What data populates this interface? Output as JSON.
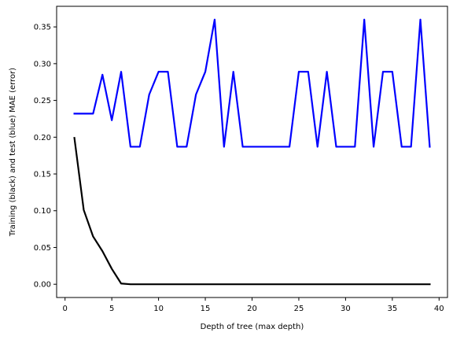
{
  "chart_data": {
    "type": "line",
    "title": "",
    "xlabel": "Depth of tree (max depth)",
    "ylabel": "Training (black) and test (blue) MAE (error)",
    "xlim": [
      -0.9,
      40.9
    ],
    "ylim": [
      -0.018,
      0.378
    ],
    "xticks": [
      0,
      5,
      10,
      15,
      20,
      25,
      30,
      35,
      40
    ],
    "yticks": [
      0.0,
      0.05,
      0.1,
      0.15,
      0.2,
      0.25,
      0.3,
      0.35
    ],
    "xtick_labels": [
      "0",
      "5",
      "10",
      "15",
      "20",
      "25",
      "30",
      "35",
      "40"
    ],
    "ytick_labels": [
      "0.00",
      "0.05",
      "0.10",
      "0.15",
      "0.20",
      "0.25",
      "0.30",
      "0.35"
    ],
    "grid": false,
    "x": [
      1,
      2,
      3,
      4,
      5,
      6,
      7,
      8,
      9,
      10,
      11,
      12,
      13,
      14,
      15,
      16,
      17,
      18,
      19,
      20,
      21,
      22,
      23,
      24,
      25,
      26,
      27,
      28,
      29,
      30,
      31,
      32,
      33,
      34,
      35,
      36,
      37,
      38,
      39
    ],
    "series": [
      {
        "color": "#000000",
        "values": [
          0.199,
          0.101,
          0.065,
          0.045,
          0.021,
          0.001,
          0,
          0,
          0,
          0,
          0,
          0,
          0,
          0,
          0,
          0,
          0,
          0,
          0,
          0,
          0,
          0,
          0,
          0,
          0,
          0,
          0,
          0,
          0,
          0,
          0,
          0,
          0,
          0,
          0,
          0,
          0,
          0,
          0
        ]
      },
      {
        "color": "#0000ff",
        "values": [
          0.232,
          0.232,
          0.232,
          0.285,
          0.223,
          0.289,
          0.187,
          0.187,
          0.258,
          0.289,
          0.289,
          0.187,
          0.187,
          0.258,
          0.289,
          0.36,
          0.187,
          0.289,
          0.187,
          0.187,
          0.187,
          0.187,
          0.187,
          0.187,
          0.289,
          0.289,
          0.187,
          0.289,
          0.187,
          0.187,
          0.187,
          0.36,
          0.187,
          0.289,
          0.289,
          0.187,
          0.187,
          0.36,
          0.187
        ]
      }
    ]
  }
}
